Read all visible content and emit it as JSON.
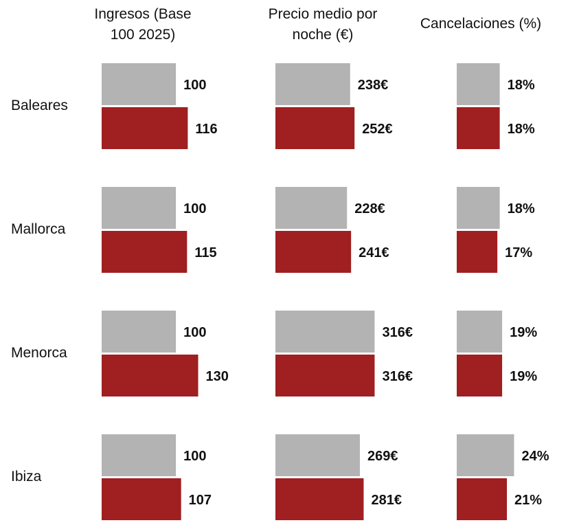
{
  "chart_data": {
    "type": "bar",
    "categories": [
      "Baleares",
      "Mallorca",
      "Menorca",
      "Ibiza"
    ],
    "panels": [
      {
        "title": "Ingresos (Base 100 2025)",
        "xlim": [
          0,
          148
        ],
        "series": [
          {
            "color": "#b3b3b3",
            "values": [
              100,
              100,
              100,
              100
            ]
          },
          {
            "color": "#a01f20",
            "values": [
              116,
              115,
              130,
              107
            ]
          }
        ]
      },
      {
        "title": "Precio medio por noche (€)",
        "xlim": [
          0,
          350
        ],
        "series": [
          {
            "color": "#b3b3b3",
            "values": [
              238,
              228,
              316,
              269
            ],
            "value_labels": [
              "238€",
              "228€",
              "316€",
              "269€"
            ]
          },
          {
            "color": "#a01f20",
            "values": [
              252,
              241,
              316,
              281
            ],
            "value_labels": [
              "252€",
              "241€",
              "316€",
              "281€"
            ]
          }
        ]
      },
      {
        "title": "Cancelaciones (%)",
        "xlim": [
          0,
          46
        ],
        "series": [
          {
            "color": "#b3b3b3",
            "values": [
              18,
              18,
              19,
              24
            ],
            "value_labels": [
              "18%",
              "18%",
              "19%",
              "24%"
            ]
          },
          {
            "color": "#a01f20",
            "values": [
              18,
              17,
              19,
              21
            ],
            "value_labels": [
              "18%",
              "17%",
              "19%",
              "21%"
            ]
          }
        ]
      }
    ]
  }
}
